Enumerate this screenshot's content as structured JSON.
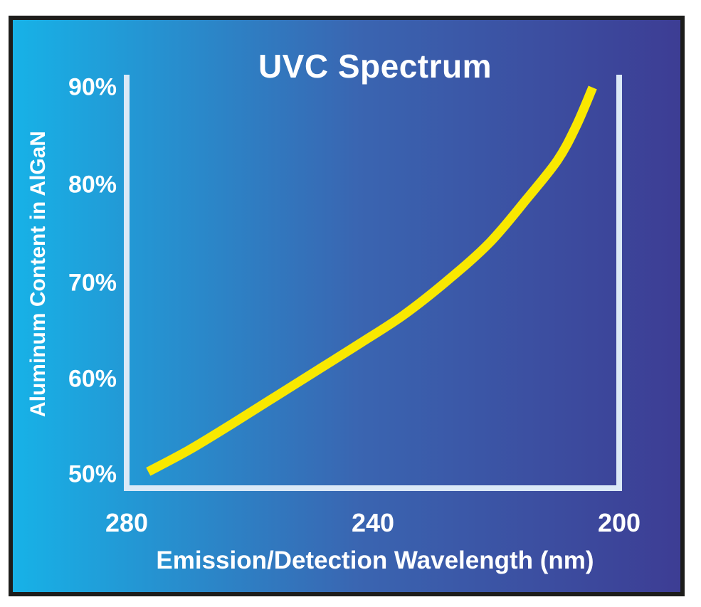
{
  "page": {
    "background": "#ffffff",
    "frame_color": "#1d1d1b"
  },
  "chart": {
    "title": "UVC Spectrum",
    "y_axis": {
      "title": "Aluminum Content in AlGaN",
      "ticks": [
        "90%",
        "80%",
        "70%",
        "60%",
        "50%"
      ]
    },
    "x_axis": {
      "title": "Emission/Detection Wavelength (nm)",
      "ticks": [
        "280",
        "240",
        "200"
      ]
    },
    "colors": {
      "gradient_left": "#17b2e7",
      "gradient_mid": "#3a65b1",
      "gradient_right": "#3d3d94",
      "axis_line": "#dbe9f7",
      "curve": "#f9e800",
      "text": "#ffffff"
    }
  },
  "chart_data": {
    "type": "line",
    "title": "UVC Spectrum",
    "xlabel": "Emission/Detection Wavelength (nm)",
    "ylabel": "Aluminum Content in AlGaN",
    "x_axis_reversed": true,
    "xlim": [
      281,
      199
    ],
    "ylim": [
      48.5,
      91
    ],
    "x_ticks": [
      280,
      240,
      200
    ],
    "y_ticks": [
      50,
      60,
      70,
      80,
      90
    ],
    "y_tick_unit": "%",
    "grid": false,
    "legend": "none",
    "series": [
      {
        "name": "Aluminum content vs emission/detection wavelength",
        "color": "#f9e800",
        "points": [
          {
            "wavelength_nm": 276.5,
            "aluminum_pct": 50.3
          },
          {
            "wavelength_nm": 270.0,
            "aluminum_pct": 52.5
          },
          {
            "wavelength_nm": 263.0,
            "aluminum_pct": 55.2
          },
          {
            "wavelength_nm": 256.0,
            "aluminum_pct": 58.0
          },
          {
            "wavelength_nm": 249.0,
            "aluminum_pct": 60.8
          },
          {
            "wavelength_nm": 242.0,
            "aluminum_pct": 63.6
          },
          {
            "wavelength_nm": 235.0,
            "aluminum_pct": 66.5
          },
          {
            "wavelength_nm": 228.0,
            "aluminum_pct": 70.0
          },
          {
            "wavelength_nm": 221.0,
            "aluminum_pct": 74.0
          },
          {
            "wavelength_nm": 215.0,
            "aluminum_pct": 78.5
          },
          {
            "wavelength_nm": 210.0,
            "aluminum_pct": 82.5
          },
          {
            "wavelength_nm": 207.0,
            "aluminum_pct": 86.0
          },
          {
            "wavelength_nm": 204.3,
            "aluminum_pct": 90.0
          }
        ]
      }
    ]
  }
}
